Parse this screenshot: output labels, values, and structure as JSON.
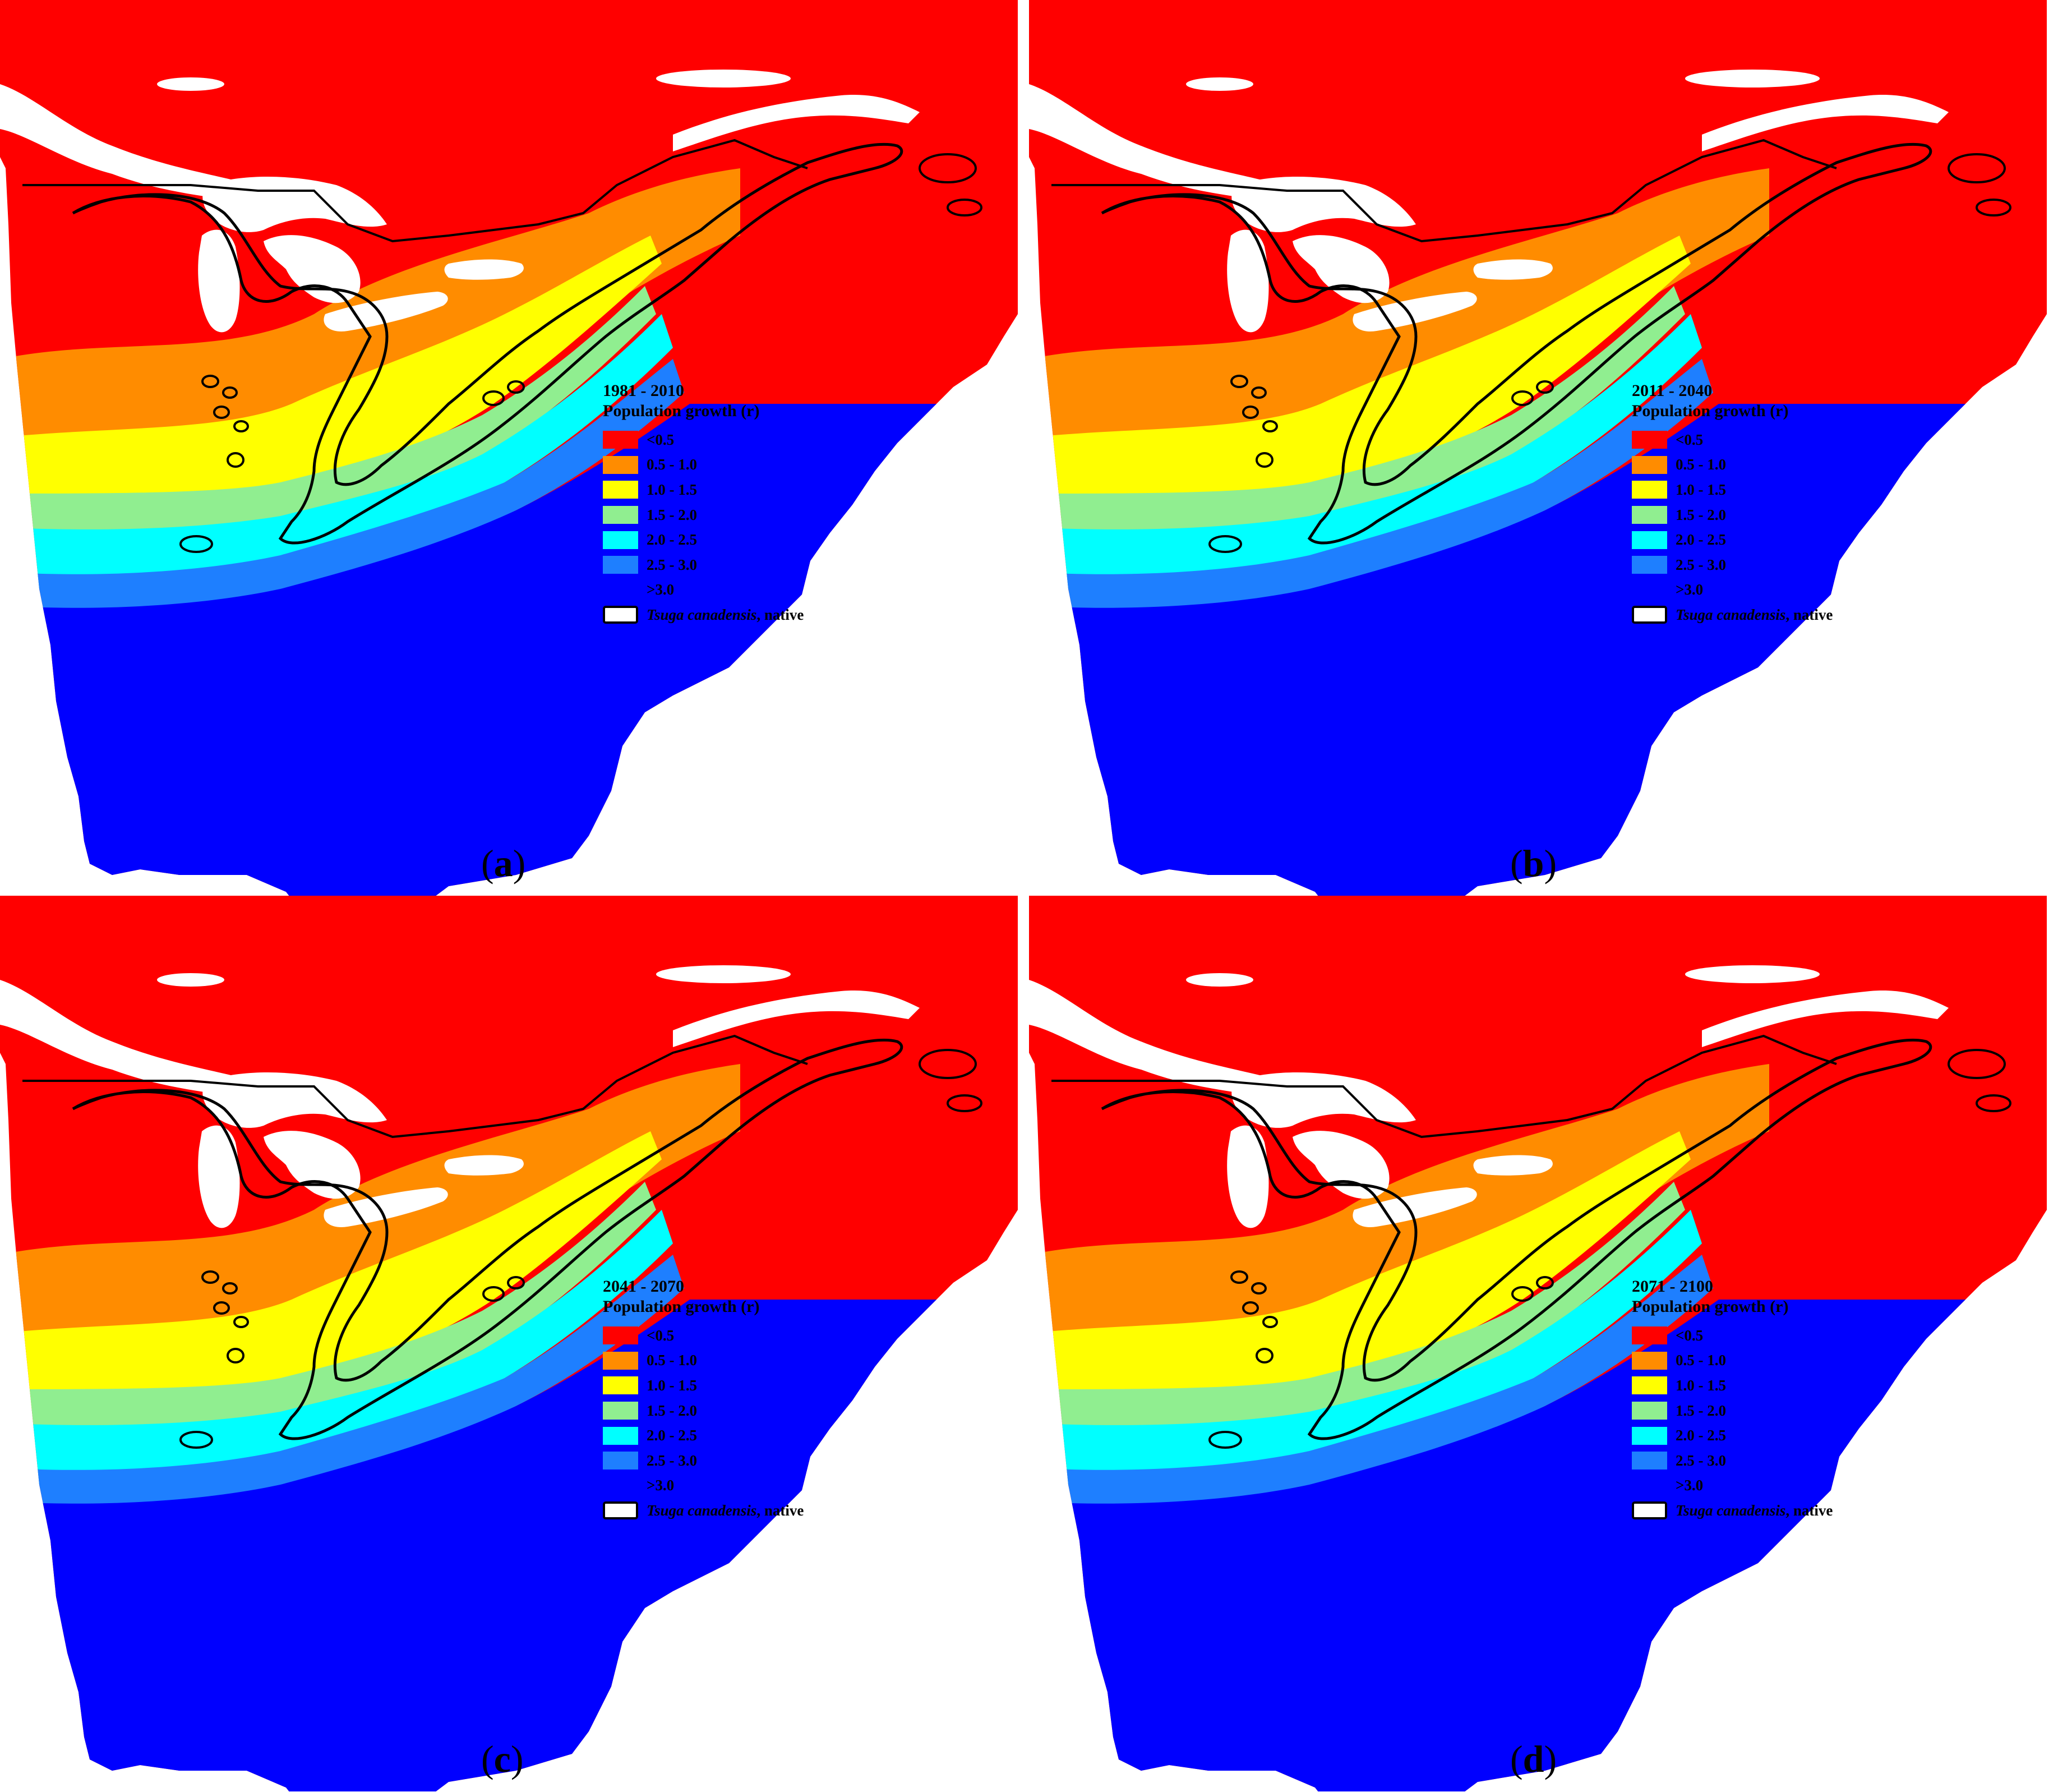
{
  "colors": {
    "class_1": "#ff0000",
    "class_2": "#ff8c00",
    "class_3": "#ffff00",
    "class_4": "#90ee90",
    "class_5": "#00ffff",
    "class_6": "#1e7fff",
    "class_7": "#0000ff",
    "native_outline": "#000000",
    "water": "#ffffff"
  },
  "legend": {
    "title": "Population growth (r)",
    "classes": [
      "<0.5",
      "0.5 - 1.0",
      "1.0 - 1.5",
      "1.5 - 2.0",
      "2.0 - 2.5",
      "2.5 - 3.0",
      ">3.0"
    ],
    "native_species": "Tsuga canadensis",
    "native_suffix": ", native"
  },
  "panels": [
    {
      "id": "a",
      "period": "1981 - 2010",
      "caption_letter": "a"
    },
    {
      "id": "b",
      "period": "2011 - 2040",
      "caption_letter": "b"
    },
    {
      "id": "c",
      "period": "2041 - 2070",
      "caption_letter": "c"
    },
    {
      "id": "d",
      "period": "2071 - 2100",
      "caption_letter": "d"
    }
  ],
  "caption_open": "(",
  "caption_close": ")"
}
